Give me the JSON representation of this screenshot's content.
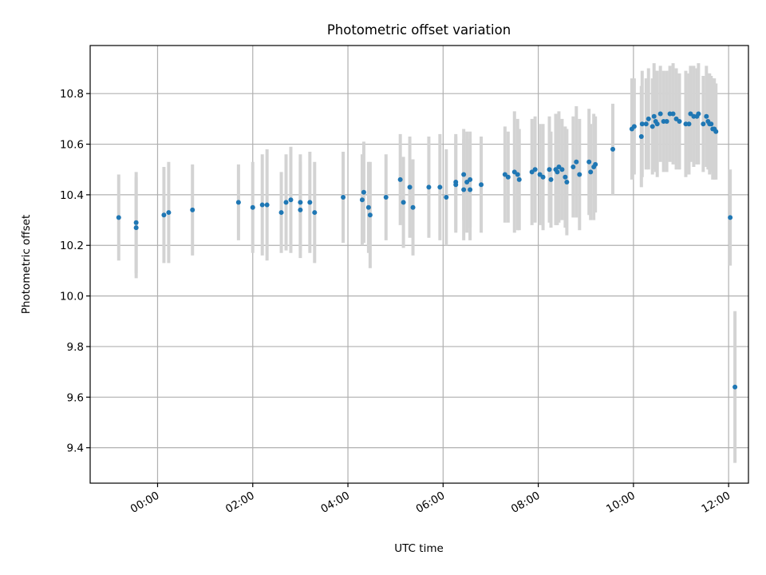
{
  "chart_data": {
    "type": "scatter",
    "title": "Photometric offset variation",
    "xlabel": "UTC time",
    "ylabel": "Photometric offset",
    "xlim": [
      "-01:25",
      "12:25"
    ],
    "ylim": [
      9.26,
      10.99
    ],
    "x_ticks": [
      "00:00",
      "02:00",
      "04:00",
      "06:00",
      "08:00",
      "10:00",
      "12:00"
    ],
    "y_ticks": [
      "9.4",
      "9.6",
      "9.8",
      "10.0",
      "10.2",
      "10.4",
      "10.6",
      "10.8"
    ],
    "grid": true,
    "colors": {
      "point": "#1f77b4",
      "errorbar": "#d3d3d3",
      "grid": "#b0b0b0"
    },
    "series": [
      {
        "points": [
          [
            "-00:49",
            10.31,
            0.17
          ],
          [
            "-00:27",
            10.29,
            0.2
          ],
          [
            "-00:27",
            10.27,
            0.2
          ],
          [
            "00:08",
            10.32,
            0.19
          ],
          [
            "00:14",
            10.33,
            0.2
          ],
          [
            "00:44",
            10.34,
            0.18
          ],
          [
            "01:42",
            10.37,
            0.15
          ],
          [
            "02:00",
            10.35,
            0.18
          ],
          [
            "02:12",
            10.36,
            0.2
          ],
          [
            "02:18",
            10.36,
            0.22
          ],
          [
            "02:36",
            10.33,
            0.16
          ],
          [
            "02:42",
            10.37,
            0.19
          ],
          [
            "02:48",
            10.38,
            0.21
          ],
          [
            "03:00",
            10.34,
            0.19
          ],
          [
            "03:00",
            10.37,
            0.19
          ],
          [
            "03:12",
            10.37,
            0.2
          ],
          [
            "03:18",
            10.33,
            0.2
          ],
          [
            "03:54",
            10.39,
            0.18
          ],
          [
            "04:18",
            10.38,
            0.18
          ],
          [
            "04:20",
            10.41,
            0.2
          ],
          [
            "04:26",
            10.35,
            0.18
          ],
          [
            "04:28",
            10.32,
            0.21
          ],
          [
            "04:48",
            10.39,
            0.17
          ],
          [
            "05:06",
            10.46,
            0.18
          ],
          [
            "05:10",
            10.37,
            0.18
          ],
          [
            "05:18",
            10.43,
            0.2
          ],
          [
            "05:22",
            10.35,
            0.19
          ],
          [
            "05:42",
            10.43,
            0.2
          ],
          [
            "05:56",
            10.43,
            0.21
          ],
          [
            "06:04",
            10.39,
            0.19
          ],
          [
            "06:16",
            10.45,
            0.19
          ],
          [
            "06:16",
            10.44,
            0.19
          ],
          [
            "06:26",
            10.42,
            0.2
          ],
          [
            "06:26",
            10.48,
            0.18
          ],
          [
            "06:30",
            10.45,
            0.2
          ],
          [
            "06:34",
            10.42,
            0.2
          ],
          [
            "06:34",
            10.46,
            0.19
          ],
          [
            "06:48",
            10.44,
            0.19
          ],
          [
            "07:18",
            10.48,
            0.19
          ],
          [
            "07:22",
            10.47,
            0.18
          ],
          [
            "07:30",
            10.49,
            0.24
          ],
          [
            "07:34",
            10.48,
            0.22
          ],
          [
            "07:36",
            10.46,
            0.2
          ],
          [
            "07:52",
            10.49,
            0.21
          ],
          [
            "07:56",
            10.5,
            0.21
          ],
          [
            "08:02",
            10.48,
            0.2
          ],
          [
            "08:06",
            10.47,
            0.21
          ],
          [
            "08:14",
            10.5,
            0.21
          ],
          [
            "08:16",
            10.46,
            0.19
          ],
          [
            "08:22",
            10.5,
            0.22
          ],
          [
            "08:24",
            10.49,
            0.21
          ],
          [
            "08:26",
            10.51,
            0.22
          ],
          [
            "08:30",
            10.5,
            0.2
          ],
          [
            "08:34",
            10.47,
            0.2
          ],
          [
            "08:36",
            10.45,
            0.21
          ],
          [
            "08:44",
            10.51,
            0.2
          ],
          [
            "08:48",
            10.53,
            0.22
          ],
          [
            "08:52",
            10.48,
            0.22
          ],
          [
            "09:04",
            10.53,
            0.21
          ],
          [
            "09:06",
            10.49,
            0.19
          ],
          [
            "09:10",
            10.51,
            0.21
          ],
          [
            "09:12",
            10.52,
            0.19
          ],
          [
            "09:34",
            10.58,
            0.18
          ],
          [
            "09:58",
            10.66,
            0.2
          ],
          [
            "10:01",
            10.67,
            0.19
          ],
          [
            "10:10",
            10.63,
            0.2
          ],
          [
            "10:11",
            10.68,
            0.21
          ],
          [
            "10:16",
            10.68,
            0.18
          ],
          [
            "10:19",
            10.7,
            0.2
          ],
          [
            "10:24",
            10.67,
            0.19
          ],
          [
            "10:26",
            10.71,
            0.21
          ],
          [
            "10:28",
            10.69,
            0.2
          ],
          [
            "10:30",
            10.68,
            0.21
          ],
          [
            "10:34",
            10.72,
            0.19
          ],
          [
            "10:38",
            10.69,
            0.2
          ],
          [
            "10:42",
            10.69,
            0.2
          ],
          [
            "10:46",
            10.72,
            0.19
          ],
          [
            "10:50",
            10.72,
            0.2
          ],
          [
            "10:54",
            10.7,
            0.2
          ],
          [
            "10:58",
            10.69,
            0.19
          ],
          [
            "11:06",
            10.68,
            0.21
          ],
          [
            "11:10",
            10.68,
            0.2
          ],
          [
            "11:12",
            10.72,
            0.19
          ],
          [
            "11:16",
            10.71,
            0.2
          ],
          [
            "11:20",
            10.71,
            0.19
          ],
          [
            "11:22",
            10.72,
            0.2
          ],
          [
            "11:28",
            10.68,
            0.19
          ],
          [
            "11:32",
            10.71,
            0.2
          ],
          [
            "11:34",
            10.69,
            0.19
          ],
          [
            "11:36",
            10.68,
            0.2
          ],
          [
            "11:38",
            10.68,
            0.19
          ],
          [
            "11:40",
            10.66,
            0.2
          ],
          [
            "11:42",
            10.66,
            0.2
          ],
          [
            "11:44",
            10.65,
            0.19
          ],
          [
            "12:02",
            10.31,
            0.19
          ],
          [
            "12:08",
            9.64,
            0.3
          ]
        ]
      }
    ]
  }
}
